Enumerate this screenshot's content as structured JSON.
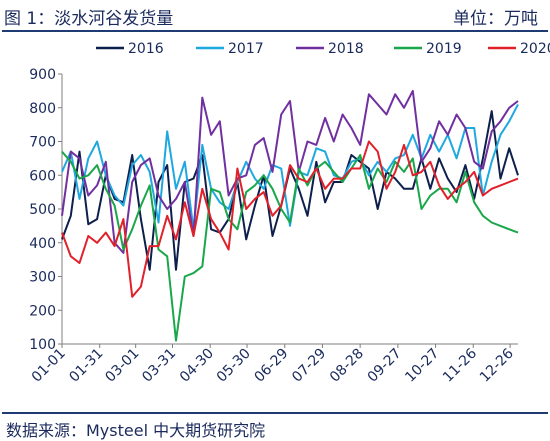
{
  "header": {
    "title": "图 1：淡水河谷发货量",
    "unit": "单位：万吨"
  },
  "footer": {
    "source": "数据来源：Mysteel 中大期货研究院"
  },
  "colors": {
    "rule": "#1f3b73",
    "text": "#1a2a5c"
  },
  "chart_data": {
    "type": "line",
    "title": "",
    "xlabel": "",
    "ylabel": "",
    "ylim": [
      100,
      900
    ],
    "yticks": [
      100,
      200,
      300,
      400,
      500,
      600,
      700,
      800,
      900
    ],
    "x_tick_labels": [
      "01-01",
      "01-31",
      "03-01",
      "03-31",
      "04-30",
      "05-30",
      "06-29",
      "07-29",
      "08-28",
      "09-27",
      "10-27",
      "11-26",
      "12-26"
    ],
    "x_tick_week_index": [
      0,
      4.3,
      8.4,
      12.6,
      16.9,
      21.1,
      25.4,
      29.7,
      34.0,
      38.3,
      42.6,
      46.9,
      51.1
    ],
    "x_count": 53,
    "grid": false,
    "legend_position": "top",
    "series": [
      {
        "name": "2016",
        "color": "#0d1f4c",
        "values": [
          410,
          480,
          670,
          455,
          470,
          600,
          530,
          520,
          660,
          470,
          320,
          580,
          630,
          320,
          580,
          590,
          660,
          440,
          430,
          470,
          580,
          410,
          510,
          600,
          420,
          510,
          620,
          560,
          480,
          640,
          520,
          580,
          580,
          660,
          640,
          620,
          500,
          610,
          590,
          560,
          560,
          650,
          560,
          650,
          590,
          550,
          630,
          530,
          650,
          790,
          590,
          680,
          600
        ]
      },
      {
        "name": "2017",
        "color": "#1fa8e0",
        "values": [
          610,
          670,
          530,
          650,
          700,
          600,
          540,
          510,
          630,
          660,
          610,
          460,
          730,
          560,
          640,
          440,
          690,
          560,
          520,
          500,
          580,
          640,
          590,
          560,
          630,
          620,
          450,
          610,
          600,
          680,
          670,
          600,
          590,
          640,
          650,
          600,
          640,
          610,
          650,
          660,
          720,
          650,
          720,
          670,
          720,
          650,
          740,
          740,
          540,
          640,
          720,
          760,
          810
        ]
      },
      {
        "name": "2018",
        "color": "#7030a0",
        "values": [
          480,
          670,
          650,
          540,
          570,
          640,
          400,
          370,
          580,
          630,
          650,
          540,
          500,
          530,
          580,
          420,
          830,
          720,
          760,
          540,
          590,
          600,
          690,
          710,
          610,
          780,
          820,
          610,
          700,
          690,
          770,
          700,
          780,
          740,
          690,
          840,
          810,
          780,
          840,
          800,
          850,
          640,
          680,
          760,
          720,
          780,
          740,
          640,
          620,
          730,
          760,
          800,
          820
        ]
      },
      {
        "name": "2019",
        "color": "#1aa64a",
        "values": [
          670,
          640,
          590,
          600,
          630,
          560,
          510,
          380,
          440,
          510,
          570,
          380,
          360,
          110,
          300,
          310,
          330,
          560,
          550,
          470,
          440,
          550,
          570,
          600,
          560,
          500,
          460,
          620,
          570,
          620,
          640,
          610,
          580,
          620,
          660,
          560,
          620,
          580,
          640,
          610,
          650,
          500,
          540,
          560,
          560,
          520,
          610,
          520,
          480,
          460,
          450,
          440,
          430
        ]
      },
      {
        "name": "2020",
        "color": "#e0202a",
        "values": [
          430,
          360,
          340,
          420,
          400,
          430,
          390,
          470,
          240,
          270,
          390,
          390,
          480,
          410,
          520,
          420,
          560,
          470,
          430,
          380,
          620,
          500,
          530,
          550,
          480,
          510,
          630,
          590,
          580,
          620,
          560,
          590,
          590,
          620,
          620,
          700,
          670,
          560,
          610,
          690,
          600,
          610,
          640,
          570,
          530,
          560,
          580,
          610,
          540,
          560,
          570,
          580,
          590
        ]
      }
    ]
  }
}
